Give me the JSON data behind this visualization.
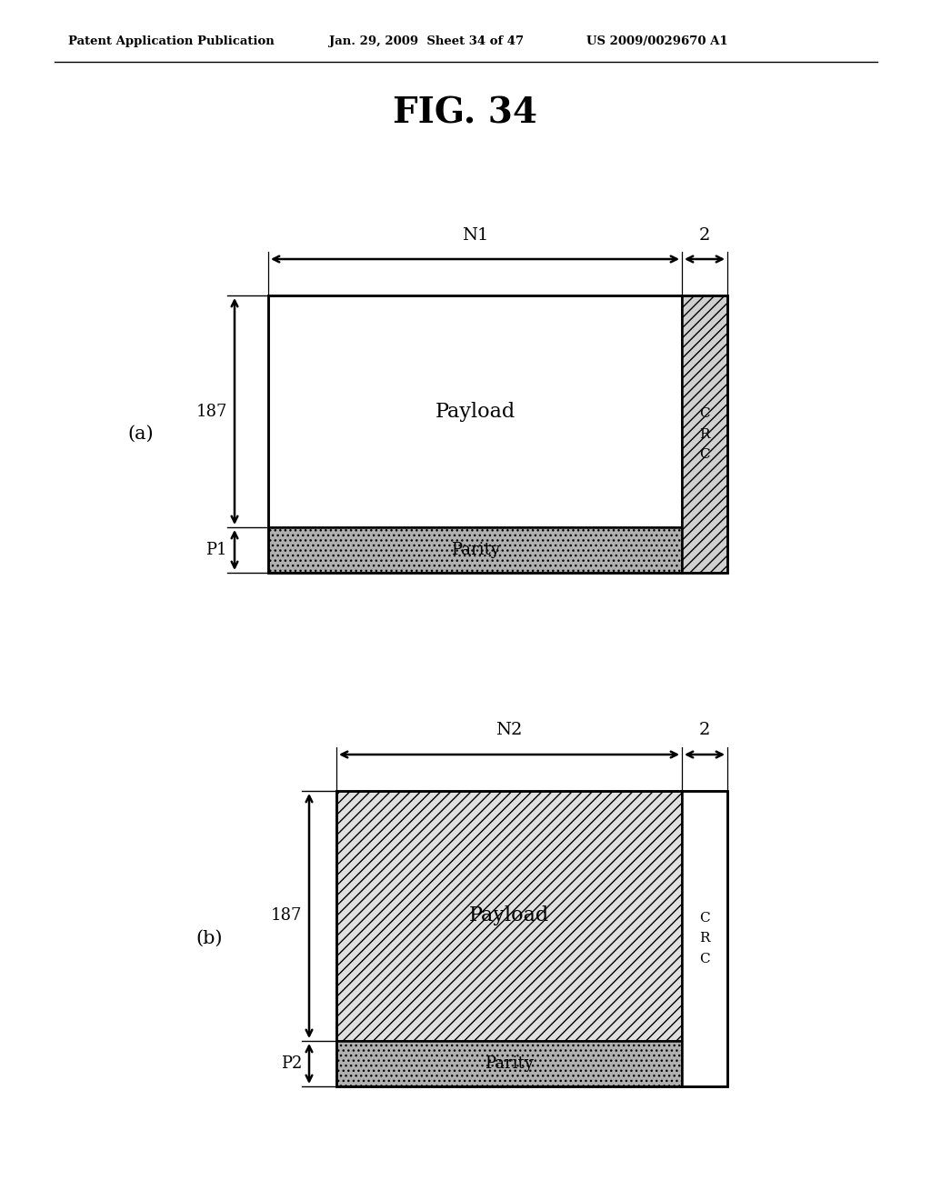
{
  "header_left": "Patent Application Publication",
  "header_mid": "Jan. 29, 2009  Sheet 34 of 47",
  "header_right": "US 2009/0029670 A1",
  "title": "FIG. 34",
  "fig_a_label": "(a)",
  "fig_b_label": "(b)",
  "payload_label": "Payload",
  "parity_label": "Parity",
  "crc_label_a": "C\nR\nC",
  "crc_label_b": "C\nR\nC",
  "n1_label": "N1",
  "n2_label": "N2",
  "dim_2_label": "2",
  "dim_187_label": "187",
  "p1_label": "P1",
  "p2_label": "P2",
  "background": "#ffffff",
  "line_color": "#000000",
  "parity_facecolor": "#b0b0b0",
  "crc_a_facecolor": "#d0d0d0",
  "payload_b_facecolor": "#d8d8d8"
}
